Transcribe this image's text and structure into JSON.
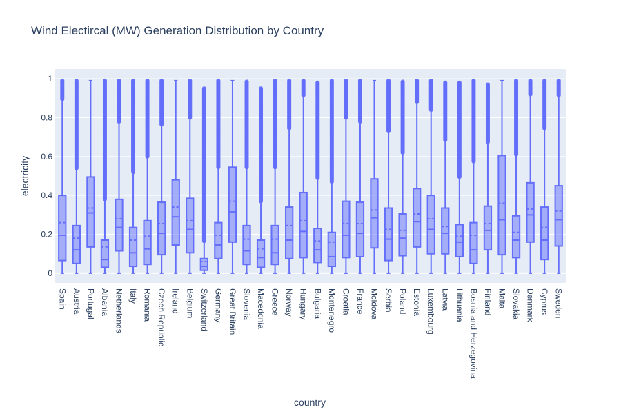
{
  "chart_data": {
    "type": "box",
    "title": "Wind Electircal (MW) Generation Distribution by Country",
    "xlabel": "country",
    "ylabel": "electricity",
    "ylim": [
      -0.05,
      1.05
    ],
    "yticks": [
      0,
      0.2,
      0.4,
      0.6,
      0.8,
      1
    ],
    "grid": true,
    "legend": "none",
    "box_color": "#636efa",
    "plot_bg": "#e5ecf6",
    "categories": [
      "Spain",
      "Austria",
      "Portugal",
      "Albania",
      "Netherlands",
      "Italy",
      "Romania",
      "Czech Republic",
      "Ireland",
      "Belgium",
      "Switzerland",
      "Germany",
      "Great Britain",
      "Slovenia",
      "Macedonia",
      "Greece",
      "Norway",
      "Hungary",
      "Bulgaria",
      "Montenegro",
      "Croatia",
      "France",
      "Moldova",
      "Serbia",
      "Poland",
      "Estonia",
      "Luxembourg",
      "Latvia",
      "Lithuania",
      "Bosnia and Herzegovina",
      "Finland",
      "Malta",
      "Slovakia",
      "Denmark",
      "Cyprus",
      "Sweden"
    ],
    "boxes": [
      {
        "q1": 0.065,
        "median": 0.195,
        "q3": 0.4,
        "mean": 0.26,
        "lower_fence": 0,
        "upper_fence": 0.895,
        "outliers_from": 0.895,
        "outliers_to": 0.99
      },
      {
        "q1": 0.05,
        "median": 0.12,
        "q3": 0.245,
        "mean": 0.18,
        "lower_fence": 0,
        "upper_fence": 0.54,
        "outliers_from": 0.54,
        "outliers_to": 0.99
      },
      {
        "q1": 0.135,
        "median": 0.31,
        "q3": 0.495,
        "mean": 0.335,
        "lower_fence": 0,
        "upper_fence": 0.99,
        "outliers_from": null,
        "outliers_to": null
      },
      {
        "q1": 0.03,
        "median": 0.07,
        "q3": 0.17,
        "mean": 0.135,
        "lower_fence": 0,
        "upper_fence": 0.38,
        "outliers_from": 0.38,
        "outliers_to": 0.99
      },
      {
        "q1": 0.115,
        "median": 0.235,
        "q3": 0.38,
        "mean": 0.28,
        "lower_fence": 0,
        "upper_fence": 0.78,
        "outliers_from": 0.78,
        "outliers_to": 0.99
      },
      {
        "q1": 0.035,
        "median": 0.105,
        "q3": 0.235,
        "mean": 0.17,
        "lower_fence": 0,
        "upper_fence": 0.52,
        "outliers_from": 0.52,
        "outliers_to": 0.99
      },
      {
        "q1": 0.045,
        "median": 0.125,
        "q3": 0.27,
        "mean": 0.19,
        "lower_fence": 0,
        "upper_fence": 0.6,
        "outliers_from": 0.6,
        "outliers_to": 0.99
      },
      {
        "q1": 0.095,
        "median": 0.205,
        "q3": 0.365,
        "mean": 0.255,
        "lower_fence": 0,
        "upper_fence": 0.765,
        "outliers_from": 0.765,
        "outliers_to": 0.99
      },
      {
        "q1": 0.145,
        "median": 0.29,
        "q3": 0.48,
        "mean": 0.34,
        "lower_fence": 0,
        "upper_fence": 0.99,
        "outliers_from": null,
        "outliers_to": null
      },
      {
        "q1": 0.105,
        "median": 0.225,
        "q3": 0.385,
        "mean": 0.27,
        "lower_fence": 0,
        "upper_fence": 0.8,
        "outliers_from": 0.8,
        "outliers_to": 0.99
      },
      {
        "q1": 0.015,
        "median": 0.035,
        "q3": 0.075,
        "mean": 0.06,
        "lower_fence": 0,
        "upper_fence": 0.165,
        "outliers_from": 0.165,
        "outliers_to": 0.95
      },
      {
        "q1": 0.075,
        "median": 0.145,
        "q3": 0.26,
        "mean": 0.195,
        "lower_fence": 0,
        "upper_fence": 0.545,
        "outliers_from": 0.545,
        "outliers_to": 0.99
      },
      {
        "q1": 0.16,
        "median": 0.315,
        "q3": 0.545,
        "mean": 0.37,
        "lower_fence": 0,
        "upper_fence": 0.99,
        "outliers_from": null,
        "outliers_to": null
      },
      {
        "q1": 0.045,
        "median": 0.115,
        "q3": 0.245,
        "mean": 0.175,
        "lower_fence": 0,
        "upper_fence": 0.545,
        "outliers_from": 0.545,
        "outliers_to": 0.985
      },
      {
        "q1": 0.03,
        "median": 0.08,
        "q3": 0.17,
        "mean": 0.125,
        "lower_fence": 0,
        "upper_fence": 0.37,
        "outliers_from": 0.37,
        "outliers_to": 0.95
      },
      {
        "q1": 0.045,
        "median": 0.105,
        "q3": 0.245,
        "mean": 0.175,
        "lower_fence": 0,
        "upper_fence": 0.545,
        "outliers_from": 0.545,
        "outliers_to": 0.99
      },
      {
        "q1": 0.075,
        "median": 0.17,
        "q3": 0.34,
        "mean": 0.245,
        "lower_fence": 0,
        "upper_fence": 0.745,
        "outliers_from": 0.745,
        "outliers_to": 0.99
      },
      {
        "q1": 0.08,
        "median": 0.215,
        "q3": 0.415,
        "mean": 0.27,
        "lower_fence": 0,
        "upper_fence": 0.915,
        "outliers_from": 0.915,
        "outliers_to": 0.99
      },
      {
        "q1": 0.055,
        "median": 0.12,
        "q3": 0.23,
        "mean": 0.165,
        "lower_fence": 0,
        "upper_fence": 0.49,
        "outliers_from": 0.49,
        "outliers_to": 0.98
      },
      {
        "q1": 0.035,
        "median": 0.085,
        "q3": 0.21,
        "mean": 0.16,
        "lower_fence": 0,
        "upper_fence": 0.47,
        "outliers_from": 0.47,
        "outliers_to": 0.99
      },
      {
        "q1": 0.08,
        "median": 0.195,
        "q3": 0.37,
        "mean": 0.255,
        "lower_fence": 0,
        "upper_fence": 0.8,
        "outliers_from": 0.8,
        "outliers_to": 0.99
      },
      {
        "q1": 0.085,
        "median": 0.205,
        "q3": 0.365,
        "mean": 0.255,
        "lower_fence": 0,
        "upper_fence": 0.78,
        "outliers_from": 0.78,
        "outliers_to": 0.99
      },
      {
        "q1": 0.13,
        "median": 0.285,
        "q3": 0.485,
        "mean": 0.325,
        "lower_fence": 0,
        "upper_fence": 0.99,
        "outliers_from": null,
        "outliers_to": null
      },
      {
        "q1": 0.065,
        "median": 0.175,
        "q3": 0.335,
        "mean": 0.225,
        "lower_fence": 0,
        "upper_fence": 0.73,
        "outliers_from": 0.73,
        "outliers_to": 0.99
      },
      {
        "q1": 0.09,
        "median": 0.18,
        "q3": 0.305,
        "mean": 0.22,
        "lower_fence": 0,
        "upper_fence": 0.62,
        "outliers_from": 0.62,
        "outliers_to": 0.985
      },
      {
        "q1": 0.135,
        "median": 0.265,
        "q3": 0.435,
        "mean": 0.305,
        "lower_fence": 0,
        "upper_fence": 0.88,
        "outliers_from": 0.88,
        "outliers_to": 0.99
      },
      {
        "q1": 0.1,
        "median": 0.225,
        "q3": 0.4,
        "mean": 0.28,
        "lower_fence": 0,
        "upper_fence": 0.84,
        "outliers_from": 0.84,
        "outliers_to": 0.99
      },
      {
        "q1": 0.1,
        "median": 0.205,
        "q3": 0.335,
        "mean": 0.24,
        "lower_fence": 0,
        "upper_fence": 0.685,
        "outliers_from": 0.685,
        "outliers_to": 0.98
      },
      {
        "q1": 0.085,
        "median": 0.16,
        "q3": 0.25,
        "mean": 0.19,
        "lower_fence": 0,
        "upper_fence": 0.495,
        "outliers_from": 0.495,
        "outliers_to": 0.98
      },
      {
        "q1": 0.05,
        "median": 0.12,
        "q3": 0.26,
        "mean": 0.195,
        "lower_fence": 0,
        "upper_fence": 0.575,
        "outliers_from": 0.575,
        "outliers_to": 0.99
      },
      {
        "q1": 0.12,
        "median": 0.22,
        "q3": 0.345,
        "mean": 0.255,
        "lower_fence": 0,
        "upper_fence": 0.675,
        "outliers_from": 0.675,
        "outliers_to": 0.97
      },
      {
        "q1": 0.095,
        "median": 0.275,
        "q3": 0.605,
        "mean": 0.36,
        "lower_fence": 0,
        "upper_fence": 0.99,
        "outliers_from": null,
        "outliers_to": null
      },
      {
        "q1": 0.08,
        "median": 0.17,
        "q3": 0.295,
        "mean": 0.21,
        "lower_fence": 0,
        "upper_fence": 0.61,
        "outliers_from": 0.61,
        "outliers_to": 0.99
      },
      {
        "q1": 0.16,
        "median": 0.3,
        "q3": 0.465,
        "mean": 0.33,
        "lower_fence": 0,
        "upper_fence": 0.92,
        "outliers_from": 0.92,
        "outliers_to": 0.99
      },
      {
        "q1": 0.07,
        "median": 0.17,
        "q3": 0.34,
        "mean": 0.235,
        "lower_fence": 0,
        "upper_fence": 0.745,
        "outliers_from": 0.745,
        "outliers_to": 0.99
      },
      {
        "q1": 0.14,
        "median": 0.275,
        "q3": 0.45,
        "mean": 0.32,
        "lower_fence": 0,
        "upper_fence": 0.915,
        "outliers_from": 0.915,
        "outliers_to": 0.99
      }
    ]
  }
}
